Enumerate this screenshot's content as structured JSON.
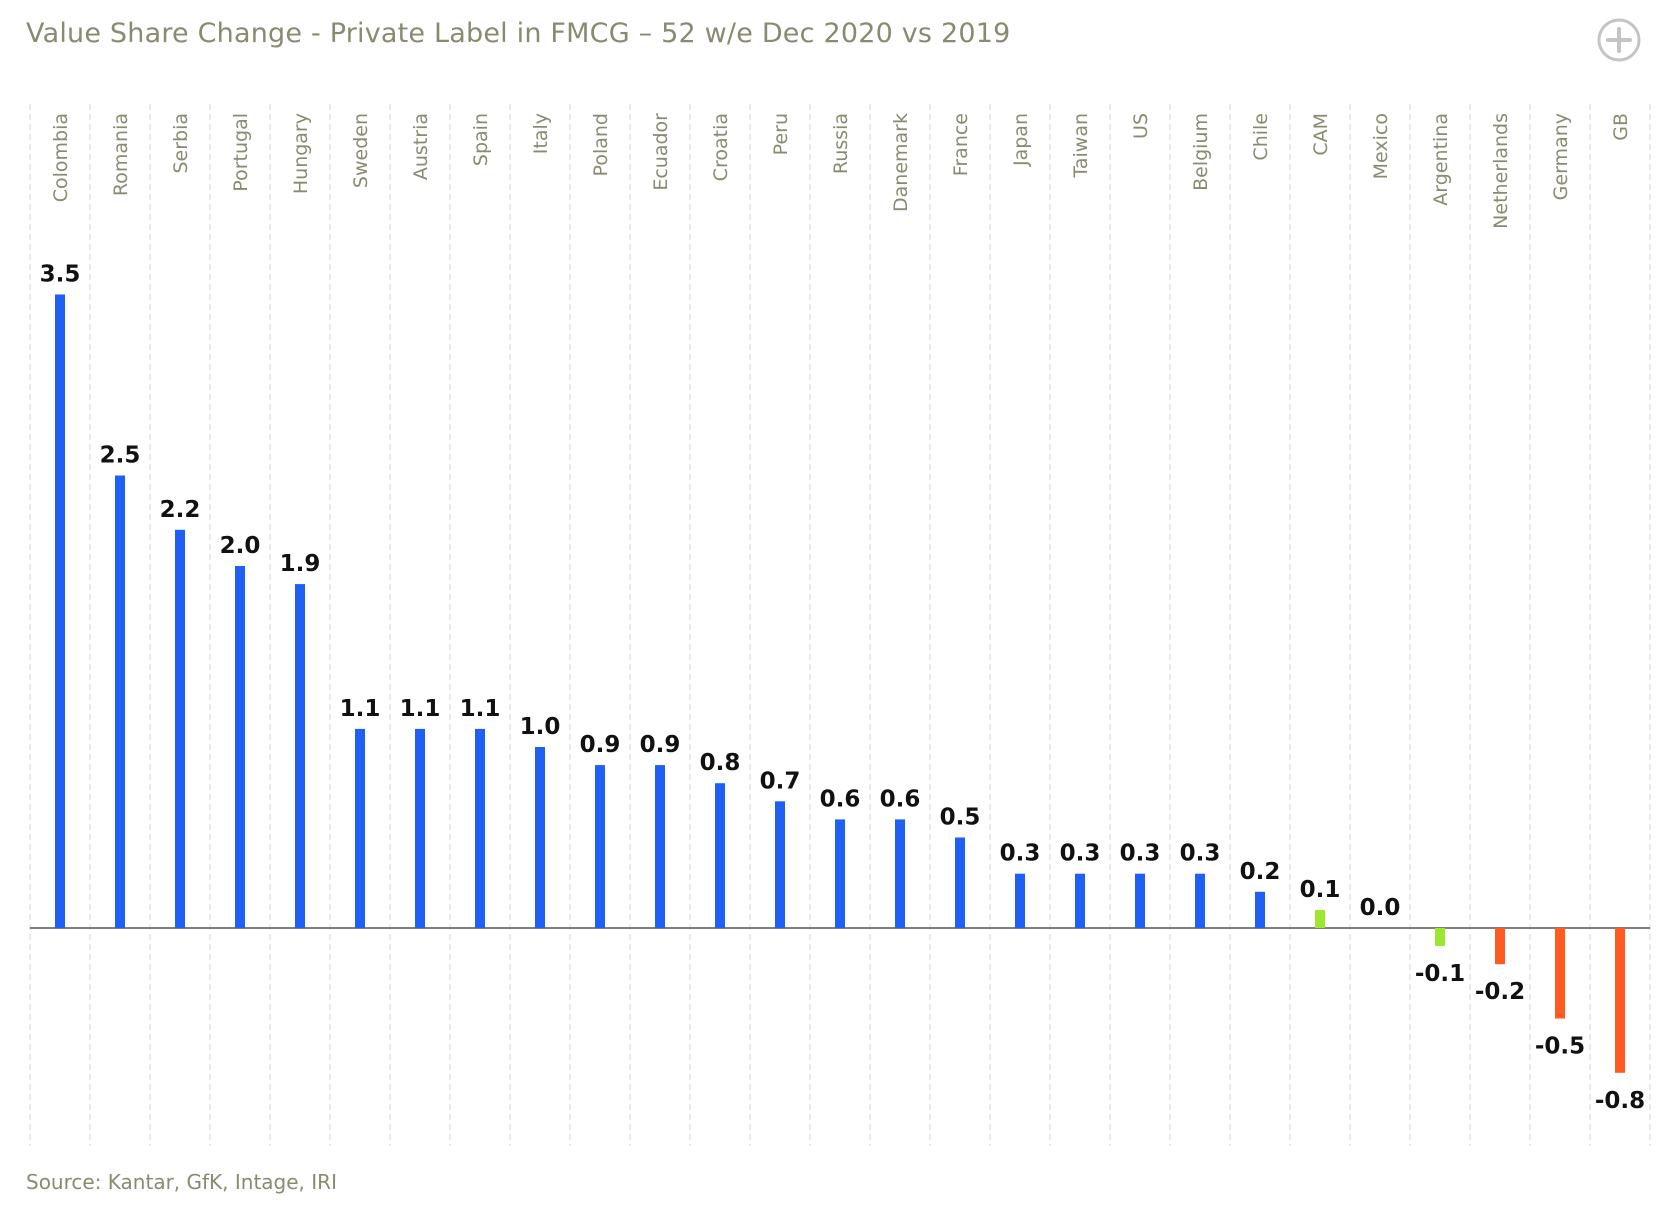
{
  "header": {
    "title": "Value Share Change  - Private Label in FMCG – 52 w/e Dec 2020 vs 2019"
  },
  "footer": {
    "source": "Source: Kantar, GfK, Intage, IRI"
  },
  "controls": {
    "expand_icon": "plus-circle-icon"
  },
  "colors": {
    "positive": "#1f5ff5",
    "neutral": "#9ee630",
    "negative": "#ff5a1f",
    "label": "#8a8a72",
    "gridline": "#d5d5d5",
    "axis": "#555555"
  },
  "chart_data": {
    "type": "bar",
    "title": "Value Share Change  - Private Label in FMCG – 52 w/e Dec 2020 vs 2019",
    "xlabel": "",
    "ylabel": "",
    "ylim": [
      -1.1,
      3.8
    ],
    "grid": "vertical dashed",
    "categories": [
      "Colombia",
      "Romania",
      "Serbia",
      "Portugal",
      "Hungary",
      "Sweden",
      "Austria",
      "Spain",
      "Italy",
      "Poland",
      "Ecuador",
      "Croatia",
      "Peru",
      "Russia",
      "Danemark",
      "France",
      "Japan",
      "Taiwan",
      "US",
      "Belgium",
      "Chile",
      "CAM",
      "Mexico",
      "Argentina",
      "Netherlands",
      "Germany",
      "GB"
    ],
    "values": [
      3.5,
      2.5,
      2.2,
      2.0,
      1.9,
      1.1,
      1.1,
      1.1,
      1.0,
      0.9,
      0.9,
      0.8,
      0.7,
      0.6,
      0.6,
      0.5,
      0.3,
      0.3,
      0.3,
      0.3,
      0.2,
      0.1,
      0.0,
      -0.1,
      -0.2,
      -0.5,
      -0.8
    ],
    "value_labels": [
      "3.5",
      "2.5",
      "2.2",
      "2.0",
      "1.9",
      "1.1",
      "1.1",
      "1.1",
      "1.0",
      "0.9",
      "0.9",
      "0.8",
      "0.7",
      "0.6",
      "0.6",
      "0.5",
      "0.3",
      "0.3",
      "0.3",
      "0.3",
      "0.2",
      "0.1",
      "0.0",
      "-0.1",
      "-0.2",
      "-0.5",
      "-0.8"
    ],
    "bar_colors": [
      "positive",
      "positive",
      "positive",
      "positive",
      "positive",
      "positive",
      "positive",
      "positive",
      "positive",
      "positive",
      "positive",
      "positive",
      "positive",
      "positive",
      "positive",
      "positive",
      "positive",
      "positive",
      "positive",
      "positive",
      "positive",
      "neutral",
      "neutral",
      "neutral",
      "negative",
      "negative",
      "negative"
    ]
  }
}
